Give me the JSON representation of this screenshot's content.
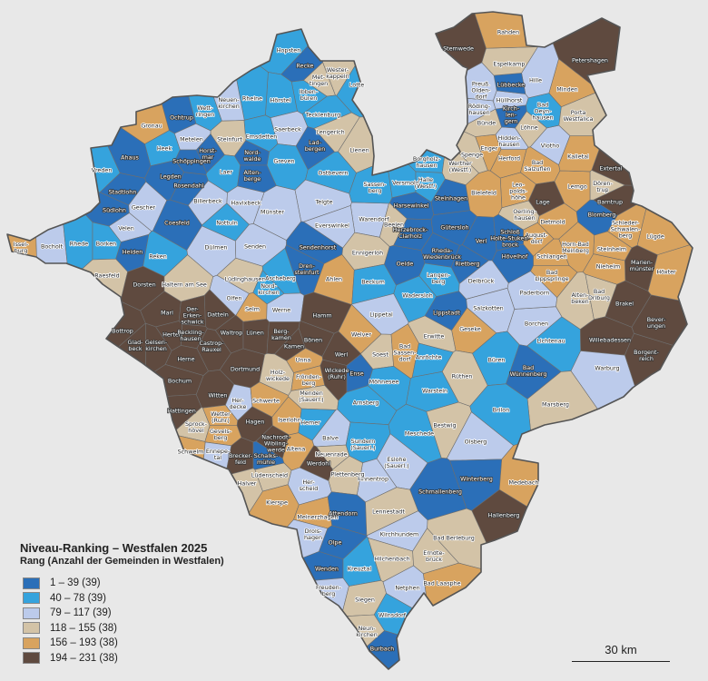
{
  "legend": {
    "title": "Niveau-Ranking – Westfalen 2025",
    "subtitle": "Rang (Anzahl der Gemeinden in Westfalen)",
    "classes": [
      {
        "label": "1 – 39 (39)",
        "color": "#2b6fb8"
      },
      {
        "label": "40 – 78 (39)",
        "color": "#35a3dd"
      },
      {
        "label": "79 – 117 (39)",
        "color": "#bccbeb"
      },
      {
        "label": "118 – 155 (38)",
        "color": "#d3c3a7"
      },
      {
        "label": "156 – 193 (38)",
        "color": "#d8a35f"
      },
      {
        "label": "194 – 231 (38)",
        "color": "#5f4a3f"
      }
    ]
  },
  "scale_bar": "30 km",
  "municipalities": [
    {
      "name": "Hopsten",
      "class": 2
    },
    {
      "name": "Recke",
      "class": 1
    },
    {
      "name": "Met-\ntingen",
      "class": 4
    },
    {
      "name": "Wester-\nkappeln",
      "class": 4
    },
    {
      "name": "Lotte",
      "class": 2
    },
    {
      "name": "Ibben-\nbüren",
      "class": 2
    },
    {
      "name": "Hörstel",
      "class": 2
    },
    {
      "name": "Rheine",
      "class": 2
    },
    {
      "name": "Neuen-\nkirchen",
      "class": 3
    },
    {
      "name": "Wett-\nringen",
      "class": 2
    },
    {
      "name": "Ochtrup",
      "class": 1
    },
    {
      "name": "Gronau",
      "class": 5
    },
    {
      "name": "Tecklenburg",
      "class": 2
    },
    {
      "name": "Lengerich",
      "class": 4
    },
    {
      "name": "Lienen",
      "class": 4
    },
    {
      "name": "Saerbeck",
      "class": 3
    },
    {
      "name": "Lad-\nbergen",
      "class": 1
    },
    {
      "name": "Emsdetten",
      "class": 2
    },
    {
      "name": "Steinfurt",
      "class": 4
    },
    {
      "name": "Metelen",
      "class": 3
    },
    {
      "name": "Heek",
      "class": 2
    },
    {
      "name": "Horst-\nmar",
      "class": 1
    },
    {
      "name": "Schöppingen",
      "class": 1
    },
    {
      "name": "Nord-\nwalde",
      "class": 1
    },
    {
      "name": "Laer",
      "class": 2
    },
    {
      "name": "Alten-\nberge",
      "class": 1
    },
    {
      "name": "Greven",
      "class": 2
    },
    {
      "name": "Ostbevern",
      "class": 2
    },
    {
      "name": "Vreden",
      "class": 2
    },
    {
      "name": "Ahaus",
      "class": 1
    },
    {
      "name": "Legden",
      "class": 1
    },
    {
      "name": "Rosendahl",
      "class": 1
    },
    {
      "name": "Stadtlohn",
      "class": 1
    },
    {
      "name": "Südlohn",
      "class": 1
    },
    {
      "name": "Gescher",
      "class": 3
    },
    {
      "name": "Billerbeck",
      "class": 3
    },
    {
      "name": "Havixbeck",
      "class": 3
    },
    {
      "name": "Telgte",
      "class": 3
    },
    {
      "name": "Münster",
      "class": 3
    },
    {
      "name": "Warendorf",
      "class": 3
    },
    {
      "name": "Everswinkel",
      "class": 3
    },
    {
      "name": "Velen",
      "class": 3
    },
    {
      "name": "Coesfeld",
      "class": 1
    },
    {
      "name": "Nottuln",
      "class": 2
    },
    {
      "name": "Dülmen",
      "class": 3
    },
    {
      "name": "Issel-\nburg",
      "class": 5
    },
    {
      "name": "Bocholt",
      "class": 3
    },
    {
      "name": "Rhede",
      "class": 2
    },
    {
      "name": "Borken",
      "class": 2
    },
    {
      "name": "Heiden",
      "class": 1
    },
    {
      "name": "Reken",
      "class": 2
    },
    {
      "name": "Raesfeld",
      "class": 4
    },
    {
      "name": "Dorsten",
      "class": 6
    },
    {
      "name": "Haltern am See",
      "class": 4
    },
    {
      "name": "Lüdinghausen",
      "class": 4
    },
    {
      "name": "Olfen",
      "class": 3
    },
    {
      "name": "Senden",
      "class": 3
    },
    {
      "name": "Sendenhorst",
      "class": 1
    },
    {
      "name": "Dren-\nsteinfurt",
      "class": 1
    },
    {
      "name": "Ascheberg",
      "class": 2
    },
    {
      "name": "Nord-\nkirchen",
      "class": 2
    },
    {
      "name": "Selm",
      "class": 5
    },
    {
      "name": "Werne",
      "class": 3
    },
    {
      "name": "Hamm",
      "class": 6
    },
    {
      "name": "Ahlen",
      "class": 5
    },
    {
      "name": "Ennigerloh",
      "class": 4
    },
    {
      "name": "Beckum",
      "class": 2
    },
    {
      "name": "Sassen-\nberg",
      "class": 2
    },
    {
      "name": "Versmold",
      "class": 2
    },
    {
      "name": "Borgholz-\nhausen",
      "class": 2
    },
    {
      "name": "Halle\n(Westf.)",
      "class": 2
    },
    {
      "name": "Werther\n(Westf.)",
      "class": 4
    },
    {
      "name": "Steinhagen",
      "class": 1
    },
    {
      "name": "Harsewinkel",
      "class": 1
    },
    {
      "name": "Beelen",
      "class": 4
    },
    {
      "name": "Herzebrock-\nClarholz",
      "class": 1
    },
    {
      "name": "Gütersloh",
      "class": 1
    },
    {
      "name": "Verl",
      "class": 1
    },
    {
      "name": "Rheda-\nWiedenbrück",
      "class": 1
    },
    {
      "name": "Rietberg",
      "class": 1
    },
    {
      "name": "Oelde",
      "class": 1
    },
    {
      "name": "Langen-\nberg",
      "class": 2
    },
    {
      "name": "Wadersloh",
      "class": 2
    },
    {
      "name": "Lippstadt",
      "class": 1
    },
    {
      "name": "Lippetal",
      "class": 3
    },
    {
      "name": "Delbrück",
      "class": 3
    },
    {
      "name": "Salzkotten",
      "class": 3
    },
    {
      "name": "Geseke",
      "class": 5
    },
    {
      "name": "Erwitte",
      "class": 4
    },
    {
      "name": "Welver",
      "class": 5
    },
    {
      "name": "Soest",
      "class": 4
    },
    {
      "name": "Bad\nSassen-\ndorf",
      "class": 5
    },
    {
      "name": "Anröchte",
      "class": 2
    },
    {
      "name": "Rüthen",
      "class": 4
    },
    {
      "name": "Büren",
      "class": 2
    },
    {
      "name": "Bad\nWünnenberg",
      "class": 1
    },
    {
      "name": "Lichtenau",
      "class": 2
    },
    {
      "name": "Borchen",
      "class": 3
    },
    {
      "name": "Paderborn",
      "class": 3
    },
    {
      "name": "Alten-\nbeken",
      "class": 4
    },
    {
      "name": "Bad\nDriburg",
      "class": 4
    },
    {
      "name": "Brakel",
      "class": 6
    },
    {
      "name": "Willebadessen",
      "class": 6
    },
    {
      "name": "Borgent-\nreich",
      "class": 6
    },
    {
      "name": "Bever-\nungen",
      "class": 6
    },
    {
      "name": "Warburg",
      "class": 3
    },
    {
      "name": "Marsberg",
      "class": 4
    },
    {
      "name": "Höxter",
      "class": 5
    },
    {
      "name": "Marien-\nmünster",
      "class": 6
    },
    {
      "name": "Nieheim",
      "class": 5
    },
    {
      "name": "Steinheim",
      "class": 5
    },
    {
      "name": "Lügde",
      "class": 5
    },
    {
      "name": "Schieder-\nSchwalen-\nberg",
      "class": 5
    },
    {
      "name": "Blomberg",
      "class": 1
    },
    {
      "name": "Barntrup",
      "class": 6
    },
    {
      "name": "Extertal",
      "class": 6
    },
    {
      "name": "Dören-\ntrup",
      "class": 4
    },
    {
      "name": "Lemgo",
      "class": 5
    },
    {
      "name": "Kalletal",
      "class": 5
    },
    {
      "name": "Detmold",
      "class": 5
    },
    {
      "name": "Lage",
      "class": 6
    },
    {
      "name": "Horn-Bad\nMeinberg",
      "class": 5
    },
    {
      "name": "Schlangen",
      "class": 5
    },
    {
      "name": "Bad\nLippspringe",
      "class": 5
    },
    {
      "name": "August-\ndorf",
      "class": 5
    },
    {
      "name": "Oerling-\nhausen",
      "class": 4
    },
    {
      "name": "Leo-\npolds-\nhöhe",
      "class": 5
    },
    {
      "name": "Schloß\nHolte-Stuken-\nbrock",
      "class": 1
    },
    {
      "name": "Hövelhof",
      "class": 1
    },
    {
      "name": "Bielefeld",
      "class": 5
    },
    {
      "name": "Bad\nSalzuflen",
      "class": 5
    },
    {
      "name": "Herford",
      "class": 5
    },
    {
      "name": "Enger",
      "class": 5
    },
    {
      "name": "Spenge",
      "class": 4
    },
    {
      "name": "Hidden-\nhausen",
      "class": 3
    },
    {
      "name": "Vlotho",
      "class": 3
    },
    {
      "name": "Löhne",
      "class": 4
    },
    {
      "name": "Bünde",
      "class": 4
    },
    {
      "name": "Kirch-\nlen-\ngern",
      "class": 1
    },
    {
      "name": "Röding-\nhausen",
      "class": 3
    },
    {
      "name": "Hüllhorst",
      "class": 3
    },
    {
      "name": "Bad\nOeyn-\nhausen",
      "class": 2
    },
    {
      "name": "Porta\nWestfalica",
      "class": 4
    },
    {
      "name": "Minden",
      "class": 5
    },
    {
      "name": "Hille",
      "class": 3
    },
    {
      "name": "Lübbecke",
      "class": 1
    },
    {
      "name": "Preuß.\nOlden-\ndorf",
      "class": 3
    },
    {
      "name": "Espelkamp",
      "class": 4
    },
    {
      "name": "Rahden",
      "class": 5
    },
    {
      "name": "Stemwede",
      "class": 6
    },
    {
      "name": "Petershagen",
      "class": 6
    },
    {
      "name": "Marl",
      "class": 6
    },
    {
      "name": "Oer-\nErken-\nschwick",
      "class": 6
    },
    {
      "name": "Datteln",
      "class": 6
    },
    {
      "name": "Bottrop",
      "class": 6
    },
    {
      "name": "Glad-\nbeck",
      "class": 6
    },
    {
      "name": "Gelsen-\nkirchen",
      "class": 6
    },
    {
      "name": "Herten",
      "class": 6
    },
    {
      "name": "Reckling-\nhausen",
      "class": 6
    },
    {
      "name": "Castrop-\nRauxel",
      "class": 6
    },
    {
      "name": "Herne",
      "class": 6
    },
    {
      "name": "Waltrop",
      "class": 6
    },
    {
      "name": "Lünen",
      "class": 6
    },
    {
      "name": "Berg-\nkamen",
      "class": 6
    },
    {
      "name": "Kamen",
      "class": 6
    },
    {
      "name": "Bönen",
      "class": 6
    },
    {
      "name": "Werl",
      "class": 6
    },
    {
      "name": "Dortmund",
      "class": 6
    },
    {
      "name": "Bochum",
      "class": 6
    },
    {
      "name": "Hattingen",
      "class": 6
    },
    {
      "name": "Witten",
      "class": 6
    },
    {
      "name": "Her-\ndecke",
      "class": 3
    },
    {
      "name": "Wetter\n(Ruhr)",
      "class": 5
    },
    {
      "name": "Sprock-\nhövel",
      "class": 4
    },
    {
      "name": "Gevels-\nberg",
      "class": 5
    },
    {
      "name": "Hagen",
      "class": 6
    },
    {
      "name": "Schwelm",
      "class": 5
    },
    {
      "name": "Ennepe-\ntal",
      "class": 3
    },
    {
      "name": "Brecker-\nfeld",
      "class": 6
    },
    {
      "name": "Schalks-\nmühle",
      "class": 1
    },
    {
      "name": "Nachrodt-\nWibling-\nwerde",
      "class": 6
    },
    {
      "name": "Altena",
      "class": 5
    },
    {
      "name": "Schwerte",
      "class": 5
    },
    {
      "name": "Iserlohn",
      "class": 5
    },
    {
      "name": "Holz-\nwickede",
      "class": 4
    },
    {
      "name": "Unna",
      "class": 5
    },
    {
      "name": "Frönden-\nberg",
      "class": 5
    },
    {
      "name": "Menden\n(Sauerl.)",
      "class": 4
    },
    {
      "name": "Hemer",
      "class": 2
    },
    {
      "name": "Balve",
      "class": 3
    },
    {
      "name": "Wickede\n(Ruhr)",
      "class": 6
    },
    {
      "name": "Ense",
      "class": 1
    },
    {
      "name": "Möhnesee",
      "class": 2
    },
    {
      "name": "Warstein",
      "class": 2
    },
    {
      "name": "Arnsberg",
      "class": 2
    },
    {
      "name": "Sundern\n(Sauerl.)",
      "class": 2
    },
    {
      "name": "Meschede",
      "class": 2
    },
    {
      "name": "Bestwig",
      "class": 4
    },
    {
      "name": "Olsberg",
      "class": 3
    },
    {
      "name": "Brilon",
      "class": 2
    },
    {
      "name": "Eslohe\n(Sauerl.)",
      "class": 3
    },
    {
      "name": "Finnentrop",
      "class": 3
    },
    {
      "name": "Neuenrade",
      "class": 4
    },
    {
      "name": "Werdohl",
      "class": 6
    },
    {
      "name": "Plettenberg",
      "class": 4
    },
    {
      "name": "Schmallenberg",
      "class": 1
    },
    {
      "name": "Winterberg",
      "class": 1
    },
    {
      "name": "Medebach",
      "class": 5
    },
    {
      "name": "Hallenberg",
      "class": 6
    },
    {
      "name": "Lüdenscheid",
      "class": 4
    },
    {
      "name": "Halver",
      "class": 4
    },
    {
      "name": "Her-\nscheid",
      "class": 3
    },
    {
      "name": "Kierspe",
      "class": 5
    },
    {
      "name": "Meinerzhagen",
      "class": 5
    },
    {
      "name": "Attendorn",
      "class": 1
    },
    {
      "name": "Lennestadt",
      "class": 4
    },
    {
      "name": "Drols-\nhagen",
      "class": 3
    },
    {
      "name": "Olpe",
      "class": 1
    },
    {
      "name": "Kirchhundem",
      "class": 3
    },
    {
      "name": "Wenden",
      "class": 1
    },
    {
      "name": "Kreuztal",
      "class": 2
    },
    {
      "name": "Hilchenbach",
      "class": 4
    },
    {
      "name": "Erndte-\nbrück",
      "class": 4
    },
    {
      "name": "Bad Berleburg",
      "class": 4
    },
    {
      "name": "Bad Laasphe",
      "class": 5
    },
    {
      "name": "Netphen",
      "class": 3
    },
    {
      "name": "Freuden-\nberg",
      "class": 3
    },
    {
      "name": "Siegen",
      "class": 4
    },
    {
      "name": "Wilnsdorf",
      "class": 2
    },
    {
      "name": "Neun-\nkirchen",
      "class": 4
    },
    {
      "name": "Burbach",
      "class": 1
    }
  ]
}
